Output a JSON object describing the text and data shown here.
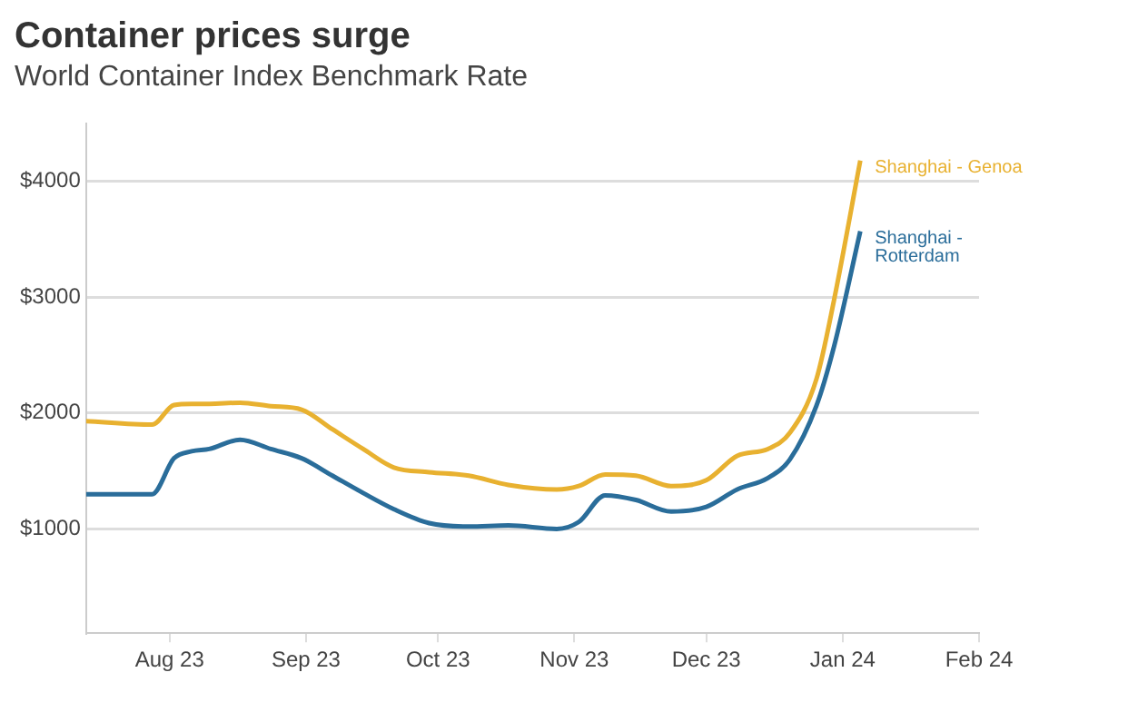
{
  "chart_data": {
    "type": "line",
    "title": "Container prices surge",
    "subtitle": "World Container Index Benchmark Rate",
    "x": [
      "2023-07-13",
      "2023-07-28",
      "2023-08-02",
      "2023-08-06",
      "2023-08-10",
      "2023-08-17",
      "2023-08-24",
      "2023-08-31",
      "2023-09-07",
      "2023-09-14",
      "2023-09-21",
      "2023-09-29",
      "2023-10-08",
      "2023-10-17",
      "2023-10-28",
      "2023-11-02",
      "2023-11-08",
      "2023-11-15",
      "2023-11-23",
      "2023-12-01",
      "2023-12-08",
      "2023-12-15",
      "2023-12-20",
      "2023-12-26",
      "2023-12-30",
      "2024-01-05"
    ],
    "series": [
      {
        "name": "Shanghai - Genoa",
        "color": "#e8b130",
        "values": [
          1930,
          1900,
          2070,
          2080,
          2080,
          2090,
          2060,
          2030,
          1860,
          1690,
          1530,
          1490,
          1460,
          1380,
          1340,
          1370,
          1470,
          1460,
          1370,
          1420,
          1630,
          1690,
          1830,
          2290,
          2970,
          4180
        ]
      },
      {
        "name": "Shanghai - Rotterdam",
        "color": "#2a6d9a",
        "values": [
          1300,
          1300,
          1610,
          1670,
          1690,
          1770,
          1690,
          1610,
          1460,
          1310,
          1170,
          1050,
          1020,
          1030,
          1000,
          1060,
          1290,
          1250,
          1150,
          1190,
          1340,
          1440,
          1600,
          2060,
          2570,
          3570
        ]
      }
    ],
    "xlim": [
      "2023-07-13",
      "2024-02-01"
    ],
    "xticks": [
      {
        "value": "2023-08-01",
        "label": "Aug 23"
      },
      {
        "value": "2023-09-01",
        "label": "Sep 23"
      },
      {
        "value": "2023-10-01",
        "label": "Oct 23"
      },
      {
        "value": "2023-11-01",
        "label": "Nov 23"
      },
      {
        "value": "2023-12-01",
        "label": "Dec 23"
      },
      {
        "value": "2024-01-01",
        "label": "Jan 24"
      },
      {
        "value": "2024-02-01",
        "label": "Feb 24"
      }
    ],
    "ylim": [
      100,
      4500
    ],
    "yticks": [
      {
        "value": 1000,
        "label": "$1000"
      },
      {
        "value": 2000,
        "label": "$2000"
      },
      {
        "value": 3000,
        "label": "$3000"
      },
      {
        "value": 4000,
        "label": "$4000"
      }
    ],
    "grid": "y",
    "legend": false,
    "marker": "none",
    "line_style": "solid"
  }
}
